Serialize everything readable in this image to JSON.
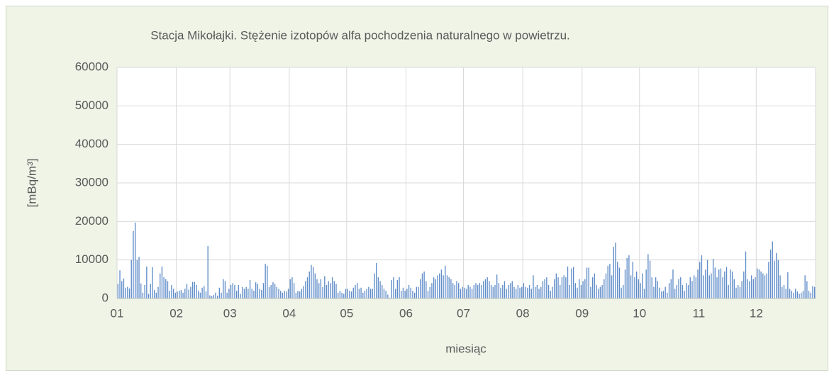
{
  "chart_data": {
    "type": "bar",
    "title": "Stacja Mikołajki. Stężenie izotopów alfa pochodzenia naturalnego w powietrzu.",
    "x_label": "miesiąc",
    "y_label": "[mBq/m³]",
    "color": "#5f8cc8",
    "grid": true,
    "ylim": [
      0,
      60000
    ],
    "yticks": [
      0,
      10000,
      20000,
      30000,
      40000,
      50000,
      60000
    ],
    "categories": [
      "01",
      null,
      null,
      null,
      null,
      null,
      null,
      null,
      null,
      null,
      null,
      null,
      null,
      null,
      null,
      null,
      null,
      null,
      null,
      null,
      null,
      null,
      null,
      null,
      null,
      null,
      null,
      null,
      null,
      null,
      null,
      "02",
      null,
      null,
      null,
      null,
      null,
      null,
      null,
      null,
      null,
      null,
      null,
      null,
      null,
      null,
      null,
      null,
      null,
      null,
      null,
      null,
      null,
      null,
      null,
      null,
      null,
      null,
      null,
      "03",
      null,
      null,
      null,
      null,
      null,
      null,
      null,
      null,
      null,
      null,
      null,
      null,
      null,
      null,
      null,
      null,
      null,
      null,
      null,
      null,
      null,
      null,
      null,
      null,
      null,
      null,
      null,
      null,
      null,
      null,
      "04",
      null,
      null,
      null,
      null,
      null,
      null,
      null,
      null,
      null,
      null,
      null,
      null,
      null,
      null,
      null,
      null,
      null,
      null,
      null,
      null,
      null,
      null,
      null,
      null,
      null,
      null,
      null,
      null,
      null,
      "05",
      null,
      null,
      null,
      null,
      null,
      null,
      null,
      null,
      null,
      null,
      null,
      null,
      null,
      null,
      null,
      null,
      null,
      null,
      null,
      null,
      null,
      null,
      null,
      null,
      null,
      null,
      null,
      null,
      null,
      null,
      "06",
      null,
      null,
      null,
      null,
      null,
      null,
      null,
      null,
      null,
      null,
      null,
      null,
      null,
      null,
      null,
      null,
      null,
      null,
      null,
      null,
      null,
      null,
      null,
      null,
      null,
      null,
      null,
      null,
      null,
      "07",
      null,
      null,
      null,
      null,
      null,
      null,
      null,
      null,
      null,
      null,
      null,
      null,
      null,
      null,
      null,
      null,
      null,
      null,
      null,
      null,
      null,
      null,
      null,
      null,
      null,
      null,
      null,
      null,
      null,
      null,
      "08",
      null,
      null,
      null,
      null,
      null,
      null,
      null,
      null,
      null,
      null,
      null,
      null,
      null,
      null,
      null,
      null,
      null,
      null,
      null,
      null,
      null,
      null,
      null,
      null,
      null,
      null,
      null,
      null,
      null,
      null,
      "09",
      null,
      null,
      null,
      null,
      null,
      null,
      null,
      null,
      null,
      null,
      null,
      null,
      null,
      null,
      null,
      null,
      null,
      null,
      null,
      null,
      null,
      null,
      null,
      null,
      null,
      null,
      null,
      null,
      null,
      "10",
      null,
      null,
      null,
      null,
      null,
      null,
      null,
      null,
      null,
      null,
      null,
      null,
      null,
      null,
      null,
      null,
      null,
      null,
      null,
      null,
      null,
      null,
      null,
      null,
      null,
      null,
      null,
      null,
      null,
      null,
      "11",
      null,
      null,
      null,
      null,
      null,
      null,
      null,
      null,
      null,
      null,
      null,
      null,
      null,
      null,
      null,
      null,
      null,
      null,
      null,
      null,
      null,
      null,
      null,
      null,
      null,
      null,
      null,
      null,
      null,
      "12",
      null,
      null,
      null,
      null,
      null,
      null,
      null,
      null,
      null,
      null,
      null,
      null,
      null,
      null,
      null,
      null,
      null,
      null,
      null,
      null,
      null,
      null,
      null,
      null,
      null,
      null,
      null,
      null,
      null,
      null
    ],
    "values": [
      3800,
      7300,
      4500,
      5200,
      2800,
      3000,
      2600,
      10000,
      17500,
      19700,
      10000,
      10800,
      3900,
      1500,
      3500,
      8300,
      1200,
      3800,
      8100,
      2200,
      1500,
      3000,
      6500,
      8300,
      5500,
      5000,
      4500,
      2000,
      3500,
      2500,
      1500,
      1800,
      2000,
      2200,
      1500,
      2500,
      3800,
      2300,
      3000,
      4300,
      4300,
      3500,
      2000,
      1500,
      2800,
      3200,
      1800,
      13600,
      800,
      600,
      900,
      1500,
      700,
      2800,
      1500,
      5000,
      4500,
      1500,
      2500,
      3500,
      4000,
      3500,
      2000,
      3500,
      1200,
      3000,
      2500,
      3000,
      2500,
      4800,
      2500,
      2000,
      4200,
      3800,
      2500,
      2200,
      4000,
      9000,
      8500,
      3000,
      3500,
      4200,
      3800,
      3000,
      2500,
      2000,
      1500,
      2000,
      1800,
      2500,
      5000,
      5500,
      4000,
      1500,
      2000,
      1800,
      2500,
      3200,
      4500,
      5500,
      7000,
      8700,
      8200,
      6500,
      5000,
      4000,
      5000,
      3000,
      5800,
      3500,
      4500,
      4000,
      5500,
      4500,
      3800,
      1500,
      2000,
      1500,
      1200,
      2500,
      2500,
      2000,
      1800,
      2800,
      3500,
      4000,
      2500,
      2800,
      1500,
      2000,
      2500,
      3000,
      2500,
      2500,
      6500,
      9200,
      5500,
      4500,
      3500,
      2500,
      2000,
      1000,
      200,
      4800,
      5500,
      2500,
      4800,
      5500,
      2000,
      2800,
      2000,
      2500,
      3500,
      2800,
      2000,
      1500,
      3000,
      3000,
      5000,
      6500,
      7000,
      4500,
      2000,
      3000,
      4000,
      5500,
      5000,
      6000,
      6500,
      7500,
      6000,
      8500,
      6000,
      5500,
      5000,
      4000,
      3500,
      4500,
      4000,
      2500,
      3000,
      2800,
      2500,
      3500,
      3000,
      2500,
      3500,
      4000,
      3500,
      4000,
      3500,
      4500,
      5000,
      5500,
      4500,
      3500,
      3000,
      3500,
      6200,
      4000,
      2800,
      3500,
      4500,
      2500,
      3500,
      4000,
      4500,
      3000,
      2500,
      3500,
      2800,
      3000,
      4000,
      3000,
      2800,
      3500,
      2500,
      6000,
      3000,
      3500,
      2500,
      3000,
      4500,
      5000,
      5500,
      3500,
      2000,
      3000,
      5000,
      6500,
      5500,
      3500,
      5500,
      6000,
      5500,
      8300,
      3500,
      7800,
      8200,
      4000,
      2800,
      5000,
      3500,
      4500,
      5000,
      8000,
      8000,
      3000,
      5500,
      6500,
      3500,
      2500,
      3000,
      3500,
      5000,
      6500,
      8500,
      9000,
      6000,
      13400,
      14500,
      9500,
      8000,
      2800,
      3500,
      7500,
      10500,
      11200,
      6000,
      9500,
      5500,
      7000,
      5000,
      4000,
      6500,
      2500,
      7500,
      11500,
      9800,
      5500,
      3000,
      5500,
      4500,
      2800,
      1800,
      2000,
      3000,
      1500,
      4000,
      5000,
      7500,
      2500,
      3500,
      5000,
      5500,
      3500,
      2000,
      4000,
      3500,
      5500,
      4500,
      6000,
      5500,
      7500,
      9500,
      11200,
      6000,
      7500,
      10000,
      6000,
      6500,
      10300,
      8000,
      5500,
      7500,
      7800,
      5500,
      7000,
      8200,
      3500,
      7500,
      7000,
      5000,
      2800,
      3500,
      3000,
      4500,
      7000,
      12200,
      5000,
      4500,
      6000,
      5000,
      5500,
      7800,
      7500,
      7000,
      6500,
      6000,
      6500,
      9500,
      12700,
      14800,
      9800,
      11800,
      10000,
      6000,
      3000,
      3500,
      2500,
      6800,
      2500,
      2000,
      1500,
      2500,
      1800,
      1200,
      1500,
      2000,
      6000,
      4500,
      2000,
      1500,
      3200,
      3000
    ]
  }
}
